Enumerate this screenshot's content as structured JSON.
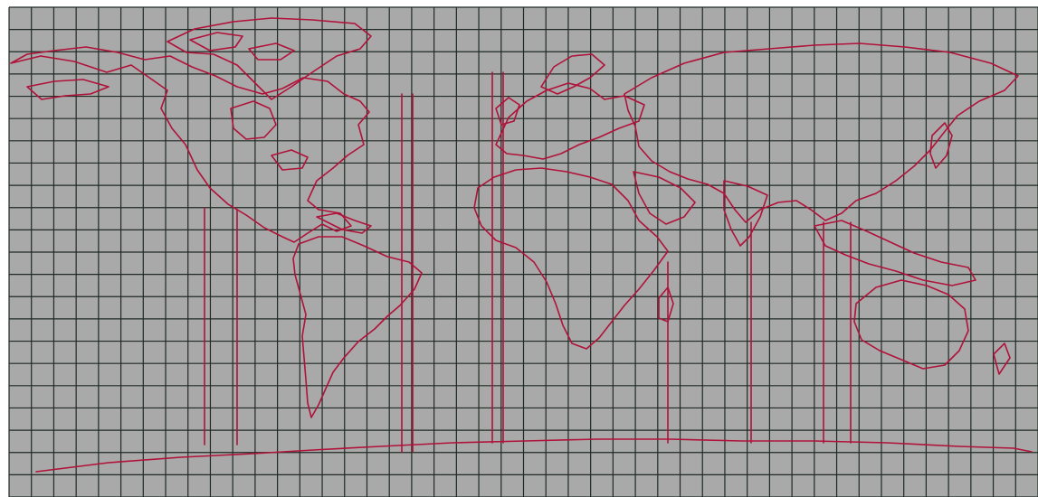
{
  "map": {
    "background_color": "#a9a9a9",
    "grid_color": "#1f2a24",
    "outline_color": "#b0123a",
    "grid": {
      "columns": 46,
      "rows": 22,
      "visible": true
    },
    "projection": "equirectangular",
    "features": [
      "north-america",
      "greenland",
      "south-america",
      "europe",
      "africa",
      "asia",
      "australia",
      "antarctica"
    ],
    "text_labels": []
  }
}
